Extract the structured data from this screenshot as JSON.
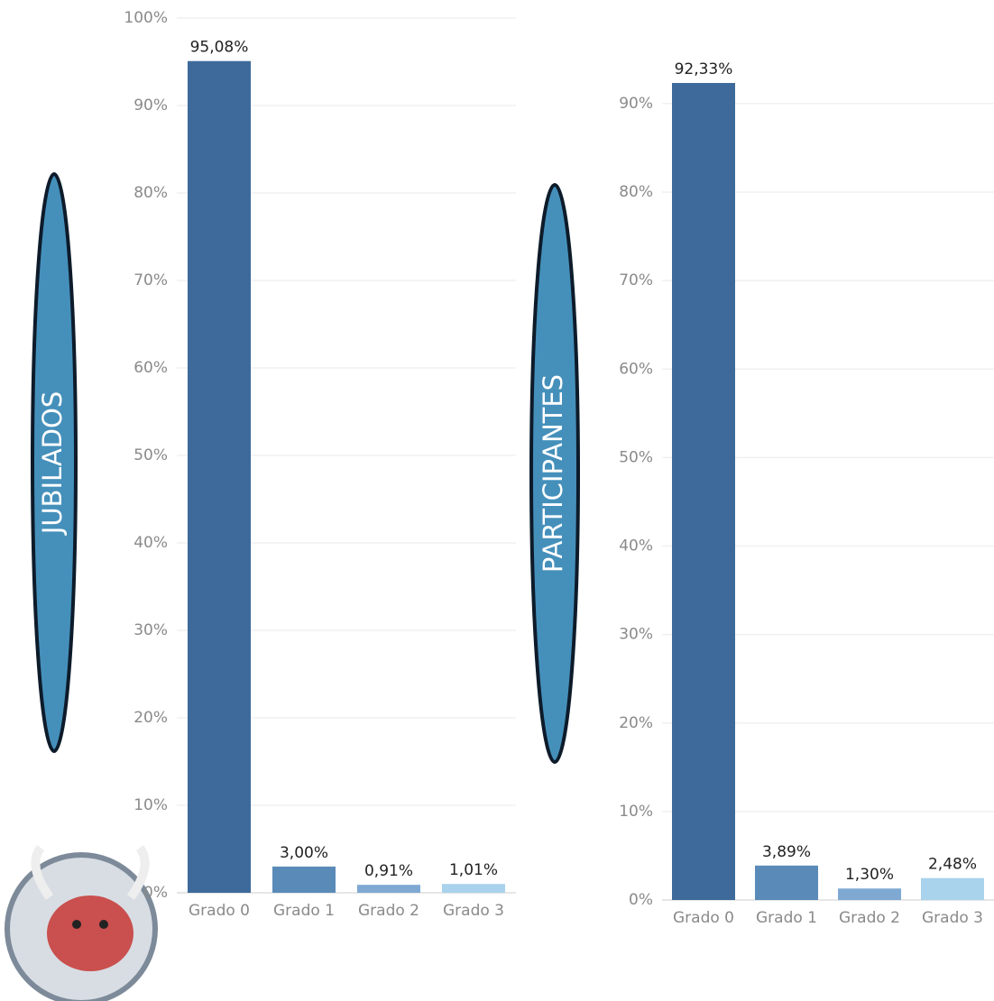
{
  "chart_data": [
    {
      "type": "bar",
      "ylabel": "JUBILADOS",
      "categories": [
        "Grado 0",
        "Grado 1",
        "Grado 2",
        "Grado 3"
      ],
      "values": [
        95.08,
        3.0,
        0.91,
        1.01
      ],
      "value_labels": [
        "95,08%",
        "3,00%",
        "0,91%",
        "1,01%"
      ],
      "colors": [
        "#3d6a9a",
        "#5a8bb8",
        "#7fa9d3",
        "#a9d2ec"
      ],
      "ylim": [
        0,
        100
      ],
      "yticks": [
        {
          "value": 0,
          "label": "0%"
        },
        {
          "value": 10,
          "label": "10%"
        },
        {
          "value": 20,
          "label": "20%"
        },
        {
          "value": 30,
          "label": "30%"
        },
        {
          "value": 40,
          "label": "40%"
        },
        {
          "value": 50,
          "label": "50%"
        },
        {
          "value": 60,
          "label": "60%"
        },
        {
          "value": 70,
          "label": "70%"
        },
        {
          "value": 80,
          "label": "80%"
        },
        {
          "value": 90,
          "label": "90%"
        },
        {
          "value": 100,
          "label": "100%"
        }
      ],
      "grid": true
    },
    {
      "type": "bar",
      "ylabel": "PARTICIPANTES",
      "categories": [
        "Grado 0",
        "Grado 1",
        "Grado 2",
        "Grado 3"
      ],
      "values": [
        92.33,
        3.89,
        1.3,
        2.48
      ],
      "value_labels": [
        "92,33%",
        "3,89%",
        "1,30%",
        "2,48%"
      ],
      "colors": [
        "#3d6a9a",
        "#5a8bb8",
        "#7fa9d3",
        "#a9d2ec"
      ],
      "ylim": [
        0,
        96
      ],
      "yticks": [
        {
          "value": 0,
          "label": "0%"
        },
        {
          "value": 10,
          "label": "10%"
        },
        {
          "value": 20,
          "label": "20%"
        },
        {
          "value": 30,
          "label": "30%"
        },
        {
          "value": 40,
          "label": "40%"
        },
        {
          "value": 50,
          "label": "50%"
        },
        {
          "value": 60,
          "label": "60%"
        },
        {
          "value": 70,
          "label": "70%"
        },
        {
          "value": 80,
          "label": "80%"
        },
        {
          "value": 90,
          "label": "90%"
        }
      ],
      "grid": true
    }
  ]
}
